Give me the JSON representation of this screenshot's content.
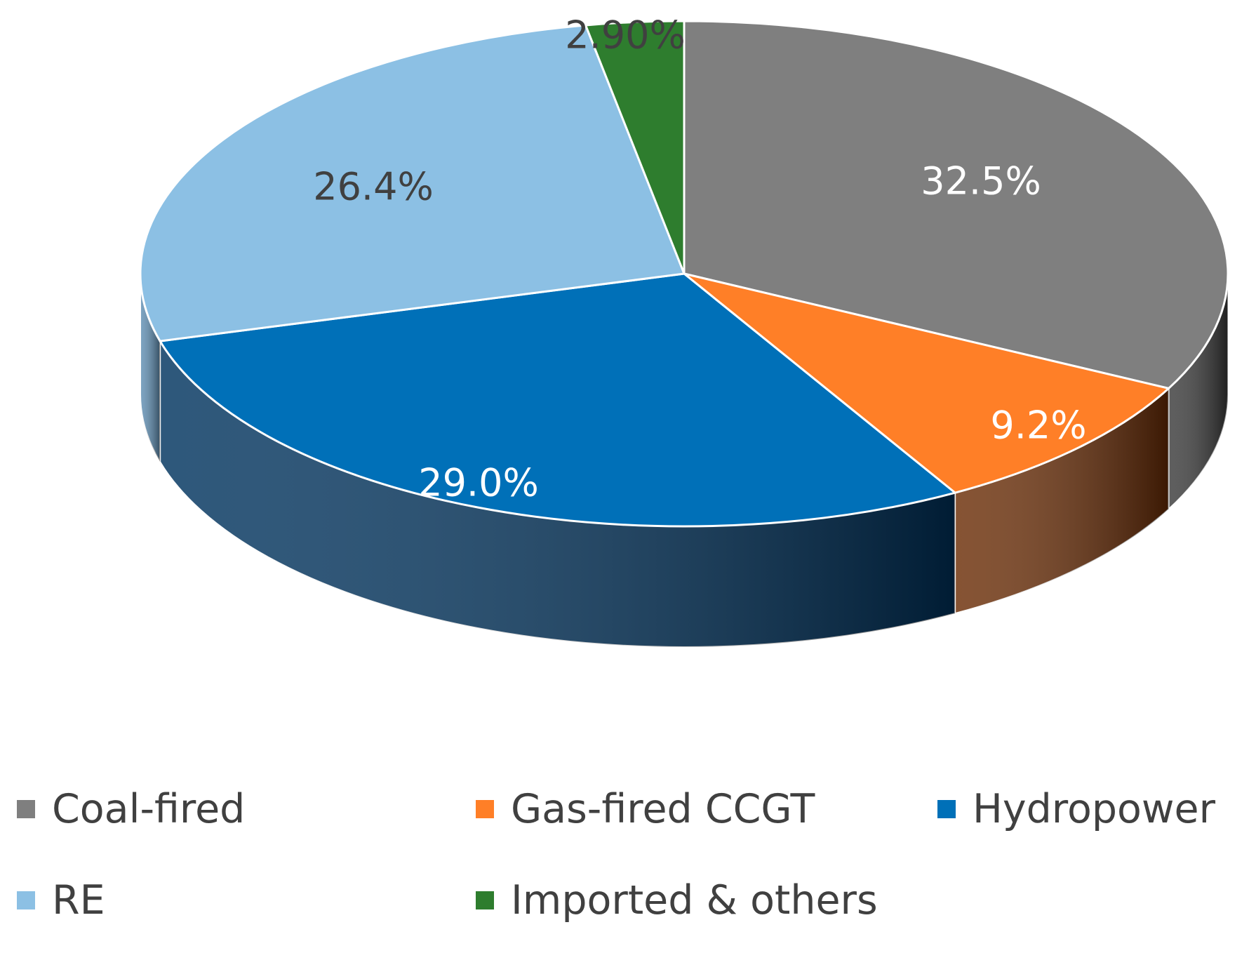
{
  "chart_data": {
    "type": "pie",
    "style": "3d",
    "title": "",
    "slices": [
      {
        "label": "Coal-fired",
        "value": 32.5,
        "display": "32.5%",
        "color": "#7f7f7f",
        "side_color": "#3a3a3a",
        "label_color": "#ffffff"
      },
      {
        "label": "Gas-fired CCGT",
        "value": 9.2,
        "display": "9.2%",
        "color": "#ff7f27",
        "side_color": "#6b2d06",
        "label_color": "#ffffff"
      },
      {
        "label": "Hydropower",
        "value": 29.0,
        "display": "29.0%",
        "color": "#0070b8",
        "side_color": "#00335e",
        "label_color": "#ffffff"
      },
      {
        "label": "RE",
        "value": 26.4,
        "display": "26.4%",
        "color": "#8cc0e4",
        "side_color": "#5f8fb4",
        "label_color": "#404040"
      },
      {
        "label": "Imported & others",
        "value": 2.9,
        "display": "2.90%",
        "color": "#2e7d2e",
        "side_color": "#1a4a1a",
        "label_color": "#404040"
      }
    ],
    "legend_position": "bottom"
  },
  "legend": {
    "items": [
      {
        "label": "Coal-fired",
        "color": "#7f7f7f"
      },
      {
        "label": "Gas-fired CCGT",
        "color": "#ff7f27"
      },
      {
        "label": "Hydropower",
        "color": "#0070b8"
      },
      {
        "label": "RE",
        "color": "#8cc0e4"
      },
      {
        "label": "Imported & others",
        "color": "#2e7d2e"
      }
    ]
  }
}
